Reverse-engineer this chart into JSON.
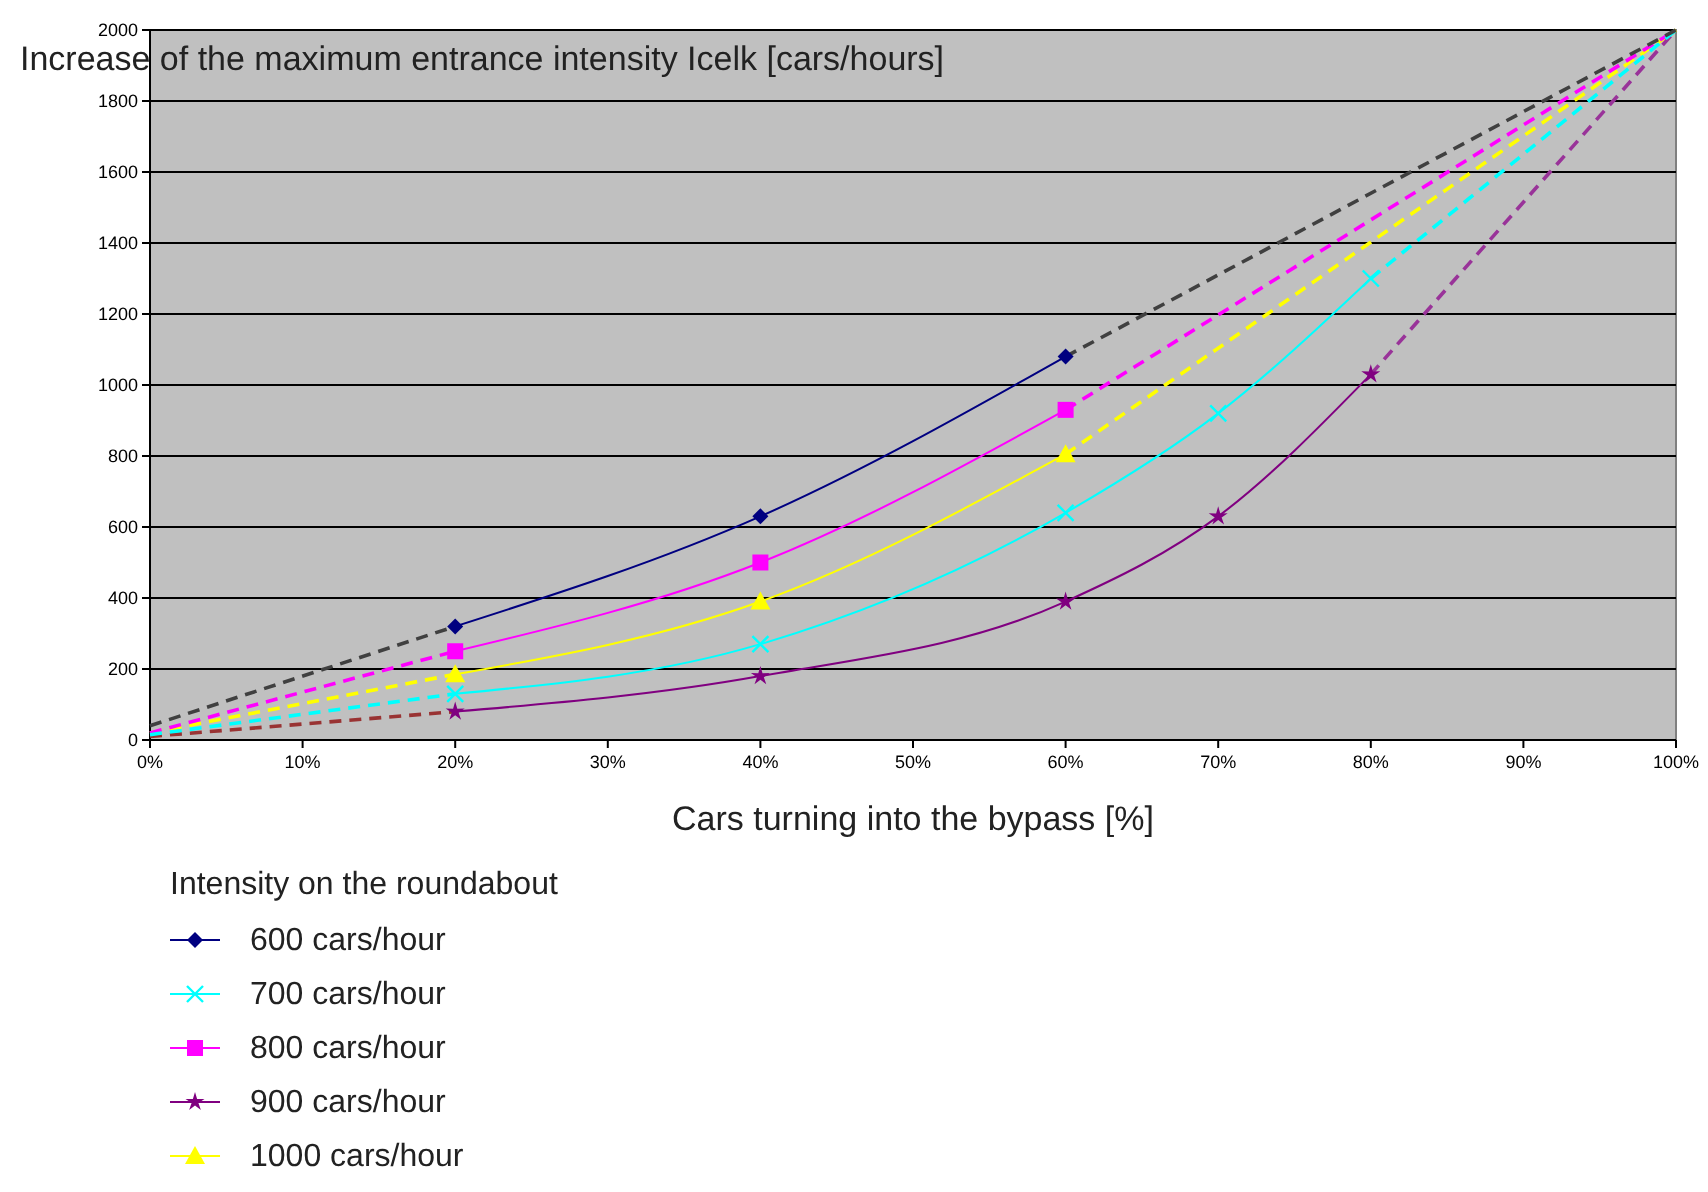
{
  "chart_data": {
    "type": "line",
    "ylabel": "Increase of the maximum entrance intensity Icelk [cars/hours]",
    "xlabel": "Cars turning into the bypass [%]",
    "legend_title": "Intensity on the roundabout",
    "legend": "bottom left",
    "grid": "y",
    "xlim": [
      0,
      100
    ],
    "xticks": [
      {
        "value": 0,
        "label": "0%"
      },
      {
        "value": 10,
        "label": "10%"
      },
      {
        "value": 20,
        "label": "20%"
      },
      {
        "value": 30,
        "label": "30%"
      },
      {
        "value": 40,
        "label": "40%"
      },
      {
        "value": 50,
        "label": "50%"
      },
      {
        "value": 60,
        "label": "60%"
      },
      {
        "value": 70,
        "label": "70%"
      },
      {
        "value": 80,
        "label": "80%"
      },
      {
        "value": 90,
        "label": "90%"
      },
      {
        "value": 100,
        "label": "100%"
      }
    ],
    "ylim": [
      0,
      2000
    ],
    "yticks": [
      0,
      200,
      400,
      600,
      800,
      1000,
      1200,
      1400,
      1600,
      1800,
      2000
    ],
    "series": [
      {
        "name": "600 cars/hour",
        "x": [
          20,
          40,
          60
        ],
        "values": [
          320,
          630,
          1080
        ],
        "color": "#000080",
        "line_style": "solid",
        "marker": "diamond"
      },
      {
        "name": "700 cars/hour",
        "x": [
          20,
          40,
          60,
          70,
          80
        ],
        "values": [
          130,
          270,
          640,
          920,
          1300
        ],
        "color": "#00ffff",
        "line_style": "solid",
        "marker": "cross"
      },
      {
        "name": "800 cars/hour",
        "x": [
          20,
          40,
          60
        ],
        "values": [
          250,
          500,
          930
        ],
        "color": "#ff00ff",
        "line_style": "solid",
        "marker": "square"
      },
      {
        "name": "900 cars/hour",
        "x": [
          20,
          40,
          60,
          70,
          80
        ],
        "values": [
          80,
          180,
          390,
          630,
          1030
        ],
        "color": "#800080",
        "line_style": "solid",
        "marker": "star"
      },
      {
        "name": "1000 cars/hour",
        "x": [
          20,
          40,
          60
        ],
        "values": [
          185,
          390,
          805
        ],
        "color": "#ffff00",
        "line_style": "solid",
        "marker": "triangle"
      },
      {
        "x": [
          0,
          20
        ],
        "values": [
          40,
          320
        ],
        "color": "#404040",
        "line_style": "dashed"
      },
      {
        "x": [
          60,
          100
        ],
        "values": [
          1080,
          2000
        ],
        "color": "#404040",
        "line_style": "dashed"
      },
      {
        "x": [
          0,
          20
        ],
        "values": [
          15,
          130
        ],
        "color": "#00ffff",
        "line_style": "dashed"
      },
      {
        "x": [
          80,
          100
        ],
        "values": [
          1300,
          2000
        ],
        "color": "#00ffff",
        "line_style": "dashed"
      },
      {
        "x": [
          0,
          20
        ],
        "values": [
          20,
          250
        ],
        "color": "#ff00ff",
        "line_style": "dashed"
      },
      {
        "x": [
          60,
          100
        ],
        "values": [
          930,
          2000
        ],
        "color": "#ff00ff",
        "line_style": "dashed"
      },
      {
        "x": [
          0,
          20
        ],
        "values": [
          10,
          80
        ],
        "color": "#993333",
        "line_style": "dashed"
      },
      {
        "x": [
          80,
          100
        ],
        "values": [
          1030,
          2000
        ],
        "color": "#993399",
        "line_style": "dashed"
      },
      {
        "x": [
          0,
          20
        ],
        "values": [
          20,
          185
        ],
        "color": "#ffff00",
        "line_style": "dashed"
      },
      {
        "x": [
          60,
          100
        ],
        "values": [
          805,
          2000
        ],
        "color": "#ffff00",
        "line_style": "dashed"
      }
    ]
  }
}
